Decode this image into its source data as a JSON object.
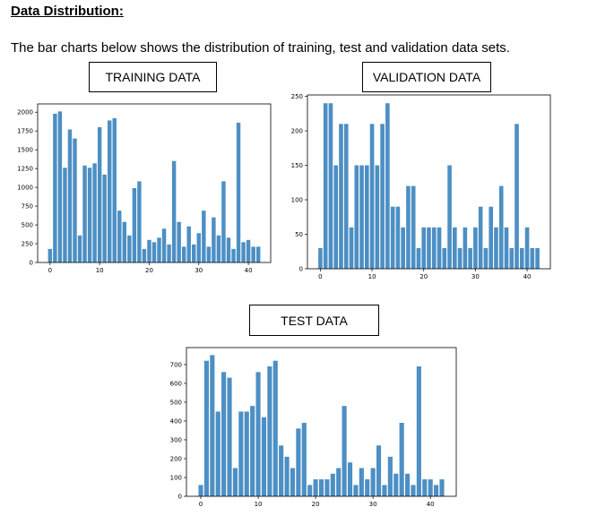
{
  "heading": "Data Distribution:",
  "intro": "The bar charts below shows the distribution of training, test and validation data sets.",
  "bar_color": "#4c8fc4",
  "chart_data": [
    {
      "type": "bar",
      "title": "TRAINING DATA",
      "xlabel": "",
      "ylabel": "",
      "categories": [
        0,
        1,
        2,
        3,
        4,
        5,
        6,
        7,
        8,
        9,
        10,
        11,
        12,
        13,
        14,
        15,
        16,
        17,
        18,
        19,
        20,
        21,
        22,
        23,
        24,
        25,
        26,
        27,
        28,
        29,
        30,
        31,
        32,
        33,
        34,
        35,
        36,
        37,
        38,
        39,
        40,
        41,
        42
      ],
      "values": [
        180,
        1980,
        2010,
        1260,
        1770,
        1650,
        360,
        1290,
        1260,
        1320,
        1800,
        1170,
        1890,
        1920,
        690,
        540,
        360,
        990,
        1080,
        180,
        300,
        270,
        330,
        450,
        240,
        1350,
        540,
        210,
        480,
        240,
        390,
        690,
        210,
        600,
        360,
        1080,
        330,
        180,
        1860,
        270,
        300,
        210,
        210
      ],
      "xticks": [
        0,
        10,
        20,
        30,
        40
      ],
      "yticks": [
        0,
        250,
        500,
        750,
        1000,
        1250,
        1500,
        1750,
        2000
      ],
      "ylim": [
        0,
        2110
      ],
      "xlim": [
        -2.5,
        44.5
      ]
    },
    {
      "type": "bar",
      "title": "VALIDATION DATA",
      "xlabel": "",
      "ylabel": "",
      "categories": [
        0,
        1,
        2,
        3,
        4,
        5,
        6,
        7,
        8,
        9,
        10,
        11,
        12,
        13,
        14,
        15,
        16,
        17,
        18,
        19,
        20,
        21,
        22,
        23,
        24,
        25,
        26,
        27,
        28,
        29,
        30,
        31,
        32,
        33,
        34,
        35,
        36,
        37,
        38,
        39,
        40,
        41,
        42
      ],
      "values": [
        30,
        240,
        240,
        150,
        210,
        210,
        60,
        150,
        150,
        150,
        210,
        150,
        210,
        240,
        90,
        90,
        60,
        120,
        120,
        30,
        60,
        60,
        60,
        60,
        30,
        150,
        60,
        30,
        60,
        30,
        60,
        90,
        30,
        90,
        60,
        120,
        60,
        30,
        210,
        30,
        60,
        30,
        30
      ],
      "xticks": [
        0,
        10,
        20,
        30,
        40
      ],
      "yticks": [
        0,
        50,
        100,
        150,
        200,
        250
      ],
      "ylim": [
        0,
        252
      ],
      "xlim": [
        -2.5,
        44.5
      ]
    },
    {
      "type": "bar",
      "title": "TEST DATA",
      "xlabel": "",
      "ylabel": "",
      "categories": [
        0,
        1,
        2,
        3,
        4,
        5,
        6,
        7,
        8,
        9,
        10,
        11,
        12,
        13,
        14,
        15,
        16,
        17,
        18,
        19,
        20,
        21,
        22,
        23,
        24,
        25,
        26,
        27,
        28,
        29,
        30,
        31,
        32,
        33,
        34,
        35,
        36,
        37,
        38,
        39,
        40,
        41,
        42
      ],
      "values": [
        60,
        720,
        750,
        450,
        660,
        630,
        150,
        450,
        450,
        480,
        660,
        420,
        690,
        720,
        270,
        210,
        150,
        360,
        390,
        60,
        90,
        90,
        90,
        120,
        150,
        480,
        180,
        60,
        150,
        90,
        150,
        270,
        60,
        210,
        120,
        390,
        120,
        60,
        690,
        90,
        90,
        60,
        90
      ],
      "xticks": [
        0,
        10,
        20,
        30,
        40
      ],
      "yticks": [
        0,
        100,
        200,
        300,
        400,
        500,
        600,
        700
      ],
      "ylim": [
        0,
        790
      ],
      "xlim": [
        -2.5,
        44.5
      ]
    }
  ]
}
